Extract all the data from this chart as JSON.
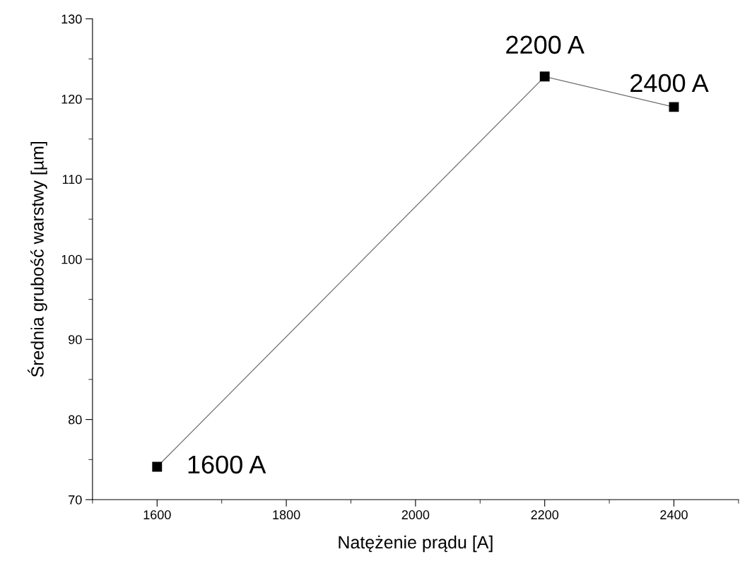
{
  "chart_data": {
    "type": "line",
    "xlabel": "Natężenie prądu [A]",
    "ylabel": "Średnia grubość warstwy [µm]",
    "x": [
      1600,
      2200,
      2400
    ],
    "series": [
      {
        "color": "#000000",
        "values": [
          74.1,
          122.8,
          119.0
        ]
      }
    ],
    "marker": "square",
    "line_style": "solid",
    "grid": false,
    "legend": false,
    "xlim": [
      1500,
      2500
    ],
    "xticks": [
      1600,
      1800,
      2000,
      2200,
      2400
    ],
    "ylim": [
      70,
      130
    ],
    "yticks": [
      70,
      80,
      90,
      100,
      110,
      120,
      130
    ],
    "annotations": [
      {
        "text": "1600 A",
        "x": 1600,
        "y": 74.1
      },
      {
        "text": "2200 A",
        "x": 2200,
        "y": 122.8
      },
      {
        "text": "2400 A",
        "x": 2400,
        "y": 119.0
      }
    ]
  }
}
